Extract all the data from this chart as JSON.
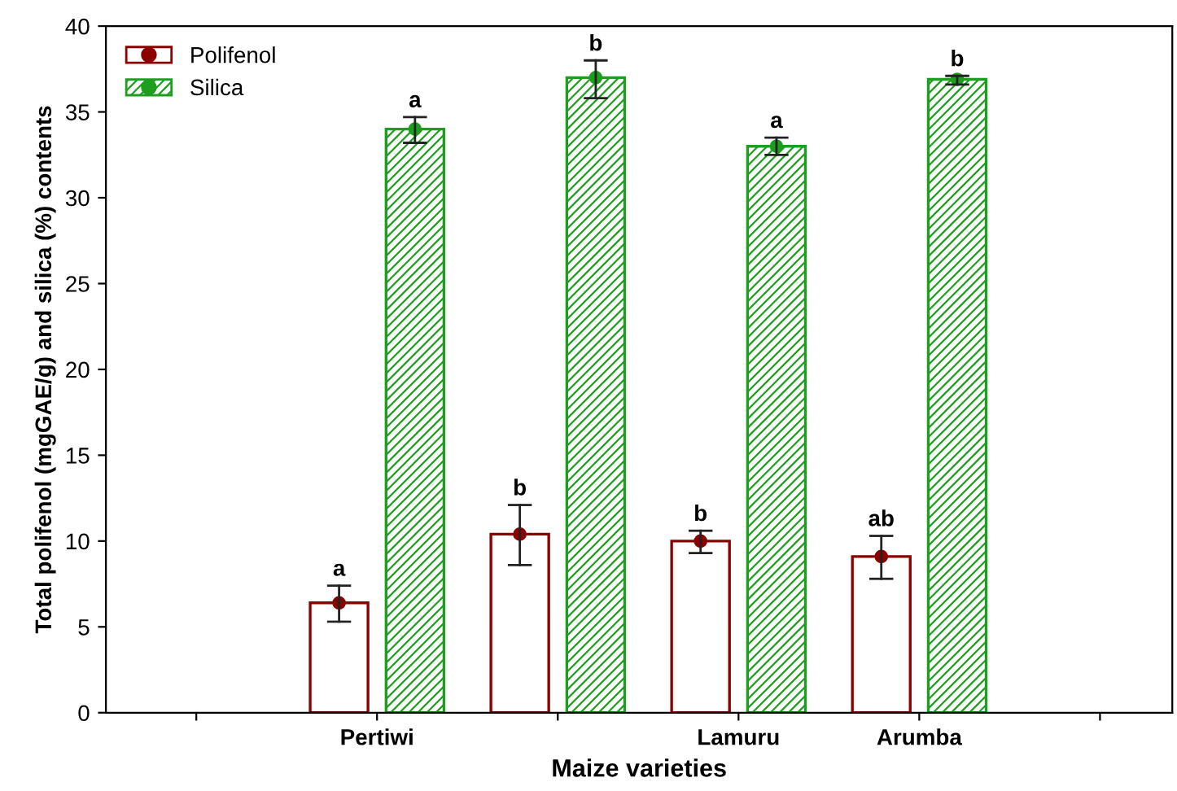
{
  "chart_data": {
    "type": "bar",
    "xlabel": "Maize varieties",
    "ylabel": "Total polifenol (mgGAE/g) and silica (%) contents",
    "categories": [
      null,
      "Pertiwi",
      null,
      "Lamuru",
      "Arumba",
      null
    ],
    "series": [
      {
        "name": "Polifenol",
        "color": "#8b0000",
        "values": [
          null,
          6.4,
          10.4,
          10.0,
          9.1,
          null
        ],
        "value_labels": [
          null,
          "a",
          "b",
          "b",
          "ab",
          null
        ]
      },
      {
        "name": "Silica",
        "color": "#1e9e1e",
        "values": [
          null,
          34.0,
          37.0,
          33.0,
          36.9,
          null
        ],
        "value_labels": [
          null,
          "a",
          "b",
          "a",
          "b",
          null
        ]
      },
      {
        "type": "scatter",
        "color": "#8b0000",
        "values": [
          null,
          6.4,
          10.4,
          10.0,
          9.1,
          null
        ],
        "errors": [
          null,
          [
            5.3,
            7.4
          ],
          [
            8.6,
            12.1
          ],
          [
            9.3,
            10.6
          ],
          [
            7.8,
            10.3
          ],
          null
        ]
      },
      {
        "type": "scatter",
        "color": "#1e9e1e",
        "values": [
          null,
          34.0,
          37.0,
          33.0,
          36.9,
          null
        ],
        "errors": [
          null,
          [
            33.2,
            34.7
          ],
          [
            35.8,
            38.0
          ],
          [
            32.5,
            33.5
          ],
          [
            36.6,
            37.1
          ],
          null
        ]
      }
    ],
    "ylim": [
      0,
      40
    ],
    "yticks": [
      0,
      5,
      10,
      15,
      20,
      25,
      30,
      35,
      40
    ],
    "grid": false,
    "legend": "top left",
    "marker": "circle"
  }
}
